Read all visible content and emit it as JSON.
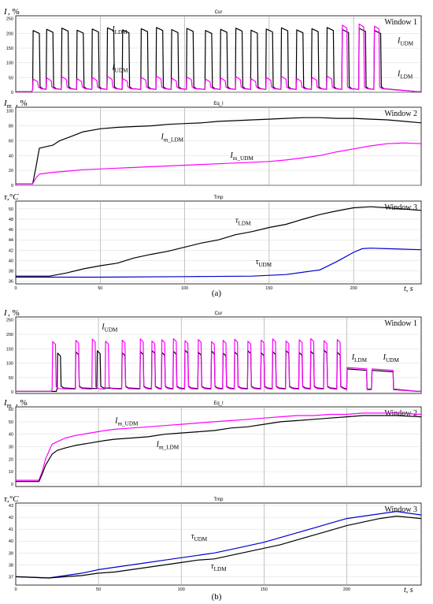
{
  "figure": {
    "caption_a": "(a)",
    "caption_b": "(b)"
  },
  "chart_data": [
    {
      "panel": "a",
      "window": "Window 1",
      "type": "line",
      "title": "Cur",
      "ylabel": "I, %",
      "xlim": [
        0,
        240
      ],
      "ylim": [
        0,
        260
      ],
      "yticks": [
        0,
        50,
        100,
        150,
        200,
        250
      ],
      "grid": true,
      "series": [
        {
          "name": "I_LDM",
          "color": "#000000",
          "pulses": {
            "starts": [
              10,
              18,
              27,
              36,
              45,
              54,
              63,
              74,
              83,
              92,
              101,
              112,
              121,
              130,
              139,
              148,
              157,
              166,
              175,
              184,
              193,
              203,
              212
            ],
            "width": 4,
            "peak": 215,
            "base": 8,
            "end_level": 40,
            "end_x": 210
          }
        },
        {
          "name": "I_UDM",
          "color": "#ff00ff",
          "pulses": {
            "starts": [
              10,
              18,
              27,
              36,
              45,
              54,
              63,
              74,
              83,
              92,
              101,
              112,
              121,
              130,
              139,
              148,
              157,
              166,
              175,
              184,
              193,
              203,
              212
            ],
            "width": 3,
            "peak": 50,
            "base": 8,
            "late_peak": 230,
            "late_from": 190
          }
        }
      ],
      "annotations": [
        {
          "text": "I_LDM",
          "x": 57,
          "y": 207
        },
        {
          "text": "I_UDM",
          "x": 57,
          "y": 77
        },
        {
          "text": "I_UDM",
          "x": 226,
          "y": 168
        },
        {
          "text": "I_LDM",
          "x": 226,
          "y": 55
        }
      ]
    },
    {
      "panel": "a",
      "window": "Window 2",
      "type": "line",
      "title": "Eq_I",
      "ylabel": "I_m, %",
      "xlim": [
        0,
        240
      ],
      "ylim": [
        0,
        105
      ],
      "yticks": [
        0,
        20,
        40,
        60,
        80,
        100
      ],
      "grid": true,
      "series": [
        {
          "name": "I_m_LDM",
          "color": "#000000",
          "x": [
            0,
            10,
            12,
            14,
            22,
            26,
            32,
            40,
            50,
            60,
            70,
            80,
            90,
            100,
            110,
            120,
            130,
            140,
            150,
            160,
            170,
            180,
            190,
            200,
            210,
            220,
            230,
            240
          ],
          "y": [
            2,
            2,
            25,
            50,
            54,
            60,
            65,
            72,
            76,
            78,
            79,
            80,
            82,
            83,
            84,
            86,
            87,
            88,
            89,
            90,
            91,
            91,
            90,
            90,
            89,
            88,
            86,
            84
          ]
        },
        {
          "name": "I_m_UDM",
          "color": "#ff00ff",
          "x": [
            0,
            10,
            12,
            14,
            20,
            30,
            40,
            50,
            60,
            70,
            80,
            90,
            100,
            110,
            120,
            130,
            140,
            150,
            160,
            170,
            180,
            190,
            200,
            210,
            220,
            230,
            240
          ],
          "y": [
            2,
            2,
            10,
            15,
            17,
            19,
            21,
            22,
            23,
            24,
            25,
            26,
            27,
            28,
            29,
            30,
            31,
            32,
            34,
            37,
            40,
            45,
            49,
            53,
            56,
            57,
            56
          ]
        }
      ],
      "annotations": [
        {
          "text": "I_m_LDM",
          "x": 86,
          "y": 62
        },
        {
          "text": "I_m_UDM",
          "x": 127,
          "y": 37
        }
      ]
    },
    {
      "panel": "a",
      "window": "Window 3",
      "type": "line",
      "title": "Tmp",
      "ylabel": "τ,°C",
      "xlabel": "t, s",
      "xlim": [
        0,
        240
      ],
      "ylim": [
        35.5,
        51.5
      ],
      "yticks": [
        36,
        38,
        40,
        42,
        44,
        46,
        48,
        50
      ],
      "xticks": [
        0,
        50,
        100,
        150,
        200
      ],
      "grid": true,
      "series": [
        {
          "name": "τ_LDM",
          "color": "#000000",
          "x": [
            0,
            20,
            30,
            40,
            50,
            60,
            70,
            80,
            90,
            100,
            110,
            120,
            130,
            140,
            150,
            160,
            170,
            180,
            190,
            200,
            210,
            220,
            240
          ],
          "y": [
            37,
            37,
            37.6,
            38.4,
            39,
            39.5,
            40.5,
            41.2,
            41.8,
            42.6,
            43.4,
            44,
            45,
            45.6,
            46.4,
            47,
            48,
            48.9,
            49.6,
            50.2,
            50.4,
            50.2,
            49.7
          ]
        },
        {
          "name": "τ_UDM",
          "color": "#0000cc",
          "x": [
            0,
            50,
            100,
            140,
            160,
            180,
            190,
            200,
            205,
            210,
            220,
            240
          ],
          "y": [
            36.8,
            36.8,
            36.9,
            37,
            37.3,
            38.2,
            39.8,
            41.6,
            42.3,
            42.4,
            42.3,
            42.1
          ]
        }
      ],
      "annotations": [
        {
          "text": "τ_LDM",
          "x": 130,
          "y": 47.3
        },
        {
          "text": "τ_UDM",
          "x": 142,
          "y": 39.3
        }
      ]
    },
    {
      "panel": "b",
      "window": "Window 1",
      "type": "line",
      "title": "Cur",
      "ylabel": "I, %",
      "xlim": [
        0,
        245
      ],
      "ylim": [
        -5,
        260
      ],
      "yticks": [
        0,
        50,
        100,
        150,
        200,
        250
      ],
      "grid": true,
      "series": [
        {
          "name": "I_LDM",
          "color": "#000000",
          "pulses": {
            "starts": [
              25,
              36,
              49,
              64,
              75,
              82,
              88,
              95,
              102,
              110,
              118,
              125,
              132,
              140,
              148,
              155,
              163,
              171,
              178,
              186,
              194
            ],
            "width": 2,
            "peak": 140,
            "base": 10,
            "plateau": [
              [
                200,
                212,
                80
              ],
              [
                215,
                228,
                75
              ]
            ]
          }
        },
        {
          "name": "I_UDM",
          "color": "#ff00ff",
          "pulses": {
            "starts": [
              22,
              36,
              46,
              54,
              64,
              75,
              82,
              88,
              95,
              102,
              110,
              118,
              125,
              132,
              140,
              148,
              155,
              163,
              171,
              178,
              186,
              194
            ],
            "width": 2,
            "peak": 180,
            "base": 8,
            "plateau": [
              [
                200,
                212,
                85
              ],
              [
                215,
                228,
                80
              ]
            ]
          }
        }
      ],
      "annotations": [
        {
          "text": "I_UDM",
          "x": 52,
          "y": 218
        },
        {
          "text": "I_LDM",
          "x": 203,
          "y": 112
        },
        {
          "text": "I_UDM",
          "x": 222,
          "y": 112
        }
      ]
    },
    {
      "panel": "b",
      "window": "Window 2",
      "type": "line",
      "title": "Eq_I",
      "ylabel": "I_m, %",
      "xlim": [
        0,
        245
      ],
      "ylim": [
        -2,
        62
      ],
      "yticks": [
        0,
        10,
        20,
        30,
        40,
        50,
        60
      ],
      "grid": true,
      "series": [
        {
          "name": "I_m_UDM",
          "color": "#ff00ff",
          "x": [
            0,
            14,
            16,
            18,
            22,
            25,
            30,
            36,
            45,
            54,
            60,
            70,
            80,
            90,
            100,
            110,
            120,
            130,
            140,
            150,
            160,
            170,
            180,
            190,
            200,
            210,
            220,
            230,
            245
          ],
          "y": [
            3,
            3,
            10,
            20,
            32,
            34,
            37,
            39,
            41,
            43,
            44,
            45,
            46,
            47,
            48,
            49,
            50,
            51,
            52,
            53,
            54,
            55,
            55,
            56,
            56,
            57,
            57,
            57,
            56
          ]
        },
        {
          "name": "I_m_LDM",
          "color": "#000000",
          "x": [
            0,
            14,
            16,
            18,
            22,
            25,
            30,
            36,
            45,
            54,
            60,
            70,
            80,
            90,
            100,
            110,
            120,
            130,
            140,
            150,
            160,
            170,
            180,
            190,
            200,
            210,
            220,
            230,
            245
          ],
          "y": [
            2,
            2,
            8,
            15,
            24,
            27,
            29,
            31,
            33,
            35,
            36,
            37,
            38,
            40,
            41,
            42,
            43,
            45,
            46,
            48,
            50,
            51,
            52,
            53,
            54,
            55,
            55,
            55,
            54
          ]
        }
      ],
      "annotations": [
        {
          "text": "I_m_UDM",
          "x": 60,
          "y": 49
        },
        {
          "text": "I_m_LDM",
          "x": 85,
          "y": 30
        }
      ]
    },
    {
      "panel": "b",
      "window": "Window 3",
      "type": "line",
      "title": "Tmp",
      "ylabel": "τ,°C",
      "xlabel": "t, s",
      "xlim": [
        0,
        245
      ],
      "ylim": [
        36.3,
        43.2
      ],
      "yticks": [
        37,
        38,
        39,
        40,
        41,
        42,
        43
      ],
      "xticks": [
        0,
        50,
        100,
        150,
        200
      ],
      "grid": true,
      "series": [
        {
          "name": "τ_UDM",
          "color": "#0000cc",
          "x": [
            0,
            20,
            30,
            40,
            50,
            60,
            70,
            80,
            90,
            100,
            110,
            120,
            130,
            140,
            150,
            160,
            170,
            180,
            190,
            200,
            210,
            220,
            230,
            245
          ],
          "y": [
            37,
            36.9,
            37.1,
            37.3,
            37.6,
            37.8,
            38.0,
            38.2,
            38.4,
            38.6,
            38.8,
            39.0,
            39.3,
            39.6,
            39.9,
            40.3,
            40.7,
            41.1,
            41.5,
            41.9,
            42.1,
            42.3,
            42.5,
            42.2
          ]
        },
        {
          "name": "τ_LDM",
          "color": "#000000",
          "x": [
            0,
            20,
            30,
            40,
            50,
            60,
            70,
            80,
            90,
            100,
            110,
            120,
            130,
            140,
            150,
            160,
            170,
            180,
            190,
            200,
            210,
            220,
            230,
            245
          ],
          "y": [
            37,
            36.9,
            37.0,
            37.1,
            37.3,
            37.4,
            37.6,
            37.8,
            38.0,
            38.2,
            38.4,
            38.5,
            38.8,
            39.1,
            39.4,
            39.7,
            40.1,
            40.5,
            40.9,
            41.3,
            41.6,
            41.9,
            42.1,
            41.9
          ]
        }
      ],
      "annotations": [
        {
          "text": "τ_UDM",
          "x": 106,
          "y": 40.2
        },
        {
          "text": "τ_LDM",
          "x": 118,
          "y": 37.7
        }
      ]
    }
  ]
}
